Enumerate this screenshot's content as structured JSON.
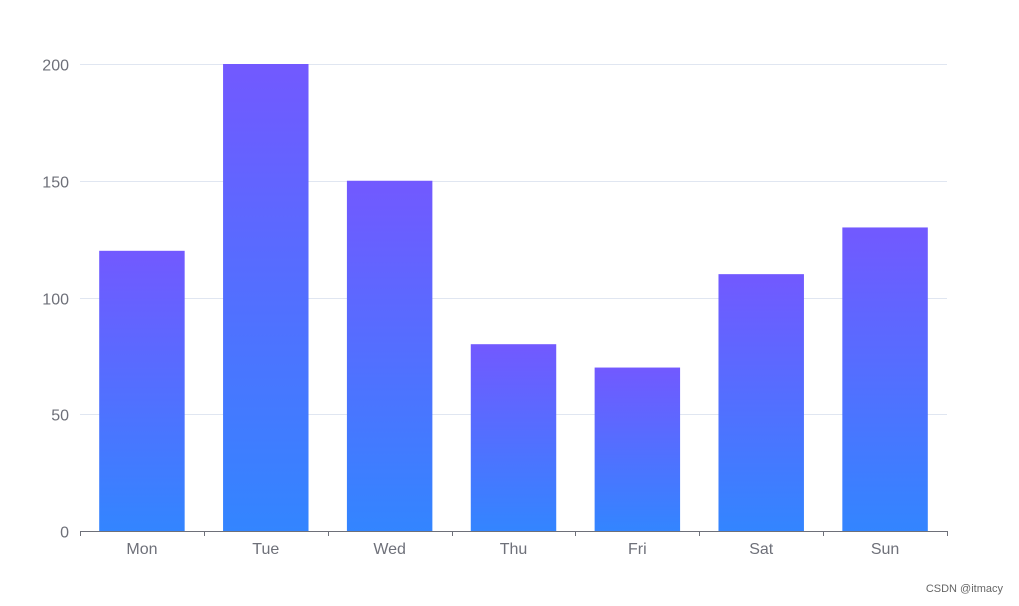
{
  "chart_data": {
    "type": "bar",
    "categories": [
      "Mon",
      "Tue",
      "Wed",
      "Thu",
      "Fri",
      "Sat",
      "Sun"
    ],
    "values": [
      120,
      200,
      150,
      80,
      70,
      110,
      130
    ],
    "ylim": [
      0,
      200
    ],
    "yticks": [
      0,
      50,
      100,
      150,
      200
    ],
    "grid": true,
    "legend": "none",
    "bar_gradient": {
      "top": "#7259ff",
      "bottom": "#3385ff"
    },
    "colors": {
      "grid": "#e0e6f1",
      "axis": "#6e7079",
      "label": "#6e7079"
    }
  },
  "watermark": "CSDN @itmacy"
}
